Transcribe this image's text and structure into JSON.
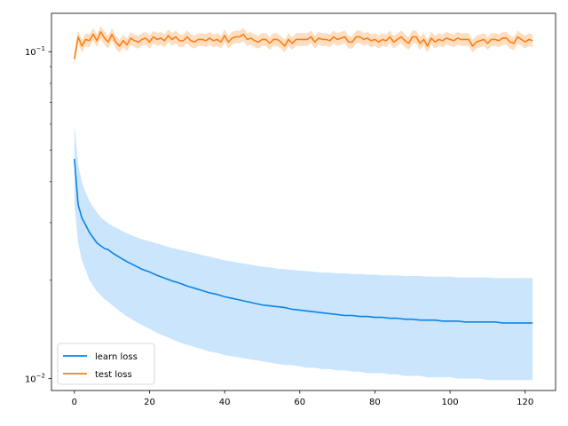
{
  "chart_data": {
    "type": "line",
    "title": "",
    "xlabel": "",
    "ylabel": "",
    "xlim": [
      -6.1,
      128.1
    ],
    "ylim": [
      0.0092,
      0.131
    ],
    "yscale": "log",
    "grid": false,
    "legend_position": "lower-left",
    "x_ticks": [
      0,
      20,
      40,
      60,
      80,
      100,
      120
    ],
    "x_tick_labels": [
      "0",
      "20",
      "40",
      "60",
      "80",
      "100",
      "120"
    ],
    "y_ticks": [
      0.01,
      0.1
    ],
    "y_tick_labels": [
      {
        "base": "10",
        "exp": "−2"
      },
      {
        "base": "10",
        "exp": "−1"
      }
    ],
    "series": [
      {
        "name": "learn loss",
        "color": "#0a84e6",
        "band_color": "#b9dcfb",
        "x": [
          0,
          1,
          2,
          3,
          4,
          5,
          6,
          7,
          8,
          9,
          10,
          12,
          14,
          16,
          18,
          20,
          22,
          24,
          26,
          28,
          30,
          32,
          34,
          36,
          38,
          40,
          42,
          44,
          46,
          48,
          50,
          52,
          54,
          56,
          58,
          60,
          62,
          64,
          66,
          68,
          70,
          72,
          74,
          76,
          78,
          80,
          82,
          84,
          86,
          88,
          90,
          92,
          94,
          96,
          98,
          100,
          102,
          104,
          106,
          108,
          110,
          112,
          114,
          116,
          118,
          120,
          122
        ],
        "y": [
          0.047,
          0.034,
          0.031,
          0.0295,
          0.028,
          0.027,
          0.026,
          0.0255,
          0.025,
          0.0248,
          0.0243,
          0.0235,
          0.0228,
          0.0222,
          0.0216,
          0.0212,
          0.0207,
          0.0203,
          0.0199,
          0.0196,
          0.0192,
          0.0189,
          0.0186,
          0.0183,
          0.0181,
          0.0178,
          0.0176,
          0.0174,
          0.0172,
          0.017,
          0.0168,
          0.0167,
          0.0166,
          0.0165,
          0.0163,
          0.0162,
          0.0161,
          0.016,
          0.0159,
          0.0158,
          0.0157,
          0.0156,
          0.0156,
          0.0155,
          0.0155,
          0.0154,
          0.0154,
          0.0153,
          0.0153,
          0.0152,
          0.0152,
          0.0151,
          0.0151,
          0.0151,
          0.015,
          0.015,
          0.015,
          0.0149,
          0.0149,
          0.0149,
          0.0149,
          0.0149,
          0.0148,
          0.0148,
          0.0148,
          0.0148,
          0.0148
        ],
        "lower": [
          0.034,
          0.026,
          0.023,
          0.0215,
          0.02,
          0.0192,
          0.0185,
          0.018,
          0.0175,
          0.0172,
          0.0168,
          0.0161,
          0.0155,
          0.015,
          0.0146,
          0.0142,
          0.0138,
          0.0135,
          0.0132,
          0.0129,
          0.0127,
          0.0125,
          0.0123,
          0.0121,
          0.012,
          0.0118,
          0.0117,
          0.0116,
          0.0115,
          0.0114,
          0.0113,
          0.0112,
          0.0111,
          0.011,
          0.011,
          0.0109,
          0.0108,
          0.0108,
          0.0107,
          0.0107,
          0.0106,
          0.0106,
          0.0105,
          0.0105,
          0.0104,
          0.0104,
          0.0104,
          0.0103,
          0.0103,
          0.0102,
          0.0102,
          0.0102,
          0.0101,
          0.0101,
          0.0101,
          0.0101,
          0.01,
          0.01,
          0.01,
          0.01,
          0.0099,
          0.0099,
          0.0099,
          0.0099,
          0.0099,
          0.0099,
          0.0099
        ],
        "upper": [
          0.06,
          0.045,
          0.04,
          0.037,
          0.035,
          0.0335,
          0.0322,
          0.0312,
          0.0305,
          0.0299,
          0.0294,
          0.0286,
          0.0278,
          0.0272,
          0.0267,
          0.0263,
          0.0259,
          0.0255,
          0.0251,
          0.0248,
          0.0245,
          0.0242,
          0.0239,
          0.0236,
          0.0233,
          0.023,
          0.0228,
          0.0226,
          0.0224,
          0.0222,
          0.022,
          0.0219,
          0.0217,
          0.0216,
          0.0215,
          0.0214,
          0.0213,
          0.0212,
          0.0211,
          0.0211,
          0.021,
          0.021,
          0.0209,
          0.0209,
          0.0208,
          0.0208,
          0.0207,
          0.0207,
          0.0207,
          0.0206,
          0.0206,
          0.0206,
          0.0205,
          0.0205,
          0.0205,
          0.0205,
          0.0204,
          0.0204,
          0.0204,
          0.0204,
          0.0204,
          0.0203,
          0.0203,
          0.0203,
          0.0203,
          0.0203,
          0.0203
        ]
      },
      {
        "name": "test loss",
        "color": "#ff7f0e",
        "band_color": "#fdd3ad",
        "x": [
          0,
          1,
          2,
          3,
          4,
          5,
          6,
          7,
          8,
          9,
          10,
          11,
          12,
          13,
          14,
          15,
          16,
          17,
          18,
          19,
          20,
          21,
          22,
          23,
          24,
          25,
          26,
          27,
          28,
          29,
          30,
          31,
          32,
          33,
          34,
          35,
          36,
          37,
          38,
          39,
          40,
          41,
          42,
          43,
          44,
          45,
          46,
          47,
          48,
          49,
          50,
          51,
          52,
          53,
          54,
          55,
          56,
          57,
          58,
          59,
          60,
          61,
          62,
          63,
          64,
          65,
          66,
          67,
          68,
          69,
          70,
          71,
          72,
          73,
          74,
          75,
          76,
          77,
          78,
          79,
          80,
          81,
          82,
          83,
          84,
          85,
          86,
          87,
          88,
          89,
          90,
          91,
          92,
          93,
          94,
          95,
          96,
          97,
          98,
          99,
          100,
          101,
          102,
          103,
          104,
          105,
          106,
          107,
          108,
          109,
          110,
          111,
          112,
          113,
          114,
          115,
          116,
          117,
          118,
          119,
          120,
          121,
          122
        ],
        "y": [
          0.095,
          0.111,
          0.104,
          0.109,
          0.108,
          0.113,
          0.108,
          0.115,
          0.11,
          0.107,
          0.113,
          0.107,
          0.104,
          0.108,
          0.105,
          0.11,
          0.108,
          0.107,
          0.109,
          0.11,
          0.107,
          0.111,
          0.109,
          0.11,
          0.108,
          0.112,
          0.109,
          0.111,
          0.108,
          0.108,
          0.111,
          0.108,
          0.107,
          0.109,
          0.109,
          0.108,
          0.11,
          0.108,
          0.109,
          0.107,
          0.112,
          0.107,
          0.11,
          0.111,
          0.111,
          0.113,
          0.109,
          0.11,
          0.108,
          0.107,
          0.109,
          0.109,
          0.106,
          0.109,
          0.109,
          0.107,
          0.104,
          0.109,
          0.106,
          0.109,
          0.109,
          0.109,
          0.109,
          0.111,
          0.107,
          0.11,
          0.109,
          0.109,
          0.108,
          0.111,
          0.109,
          0.11,
          0.111,
          0.107,
          0.107,
          0.111,
          0.111,
          0.109,
          0.11,
          0.108,
          0.109,
          0.107,
          0.109,
          0.108,
          0.111,
          0.107,
          0.109,
          0.111,
          0.108,
          0.106,
          0.111,
          0.111,
          0.106,
          0.109,
          0.104,
          0.11,
          0.107,
          0.109,
          0.108,
          0.11,
          0.109,
          0.108,
          0.11,
          0.109,
          0.109,
          0.109,
          0.104,
          0.107,
          0.108,
          0.109,
          0.106,
          0.109,
          0.109,
          0.108,
          0.11,
          0.11,
          0.107,
          0.106,
          0.111,
          0.109,
          0.107,
          0.109,
          0.108
        ],
        "band_rel": 0.045
      }
    ]
  }
}
